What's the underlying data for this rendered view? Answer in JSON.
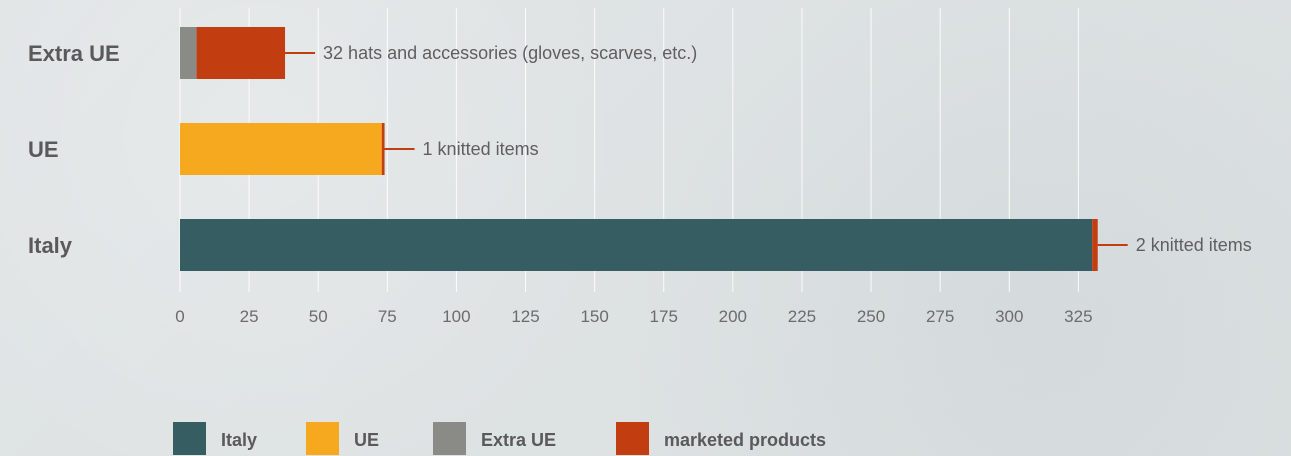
{
  "chart_data": {
    "type": "bar",
    "orientation": "horizontal",
    "stacked": true,
    "categories": [
      "Extra UE",
      "UE",
      "Italy"
    ],
    "series": [
      {
        "name": "Italy",
        "color": "#365e62",
        "values": [
          0,
          0,
          330
        ]
      },
      {
        "name": "UE",
        "color": "#f6a91f",
        "values": [
          0,
          73,
          0
        ]
      },
      {
        "name": "Extra UE",
        "color": "#8a8a86",
        "values": [
          6,
          0,
          0
        ]
      },
      {
        "name": "marketed products",
        "color": "#c23d10",
        "values": [
          32,
          1,
          2
        ]
      }
    ],
    "annotations": [
      "32 hats and accessories (gloves, scarves, etc.)",
      "1 knitted items",
      "2 knitted items"
    ],
    "x_ticks": [
      0,
      25,
      50,
      75,
      100,
      125,
      150,
      175,
      200,
      225,
      250,
      275,
      300,
      325
    ],
    "xlim": [
      0,
      335
    ],
    "grid": true,
    "legend_position": "bottom"
  }
}
